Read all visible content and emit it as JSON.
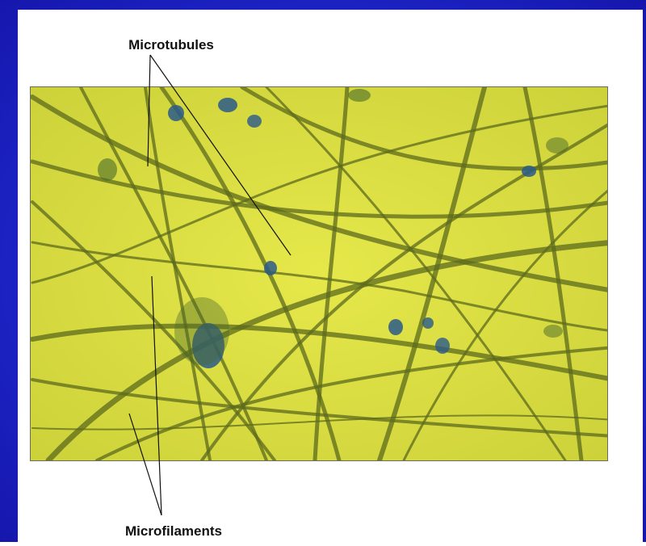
{
  "labels": {
    "top": "Microtubules",
    "bottom": "Microfilaments"
  }
}
